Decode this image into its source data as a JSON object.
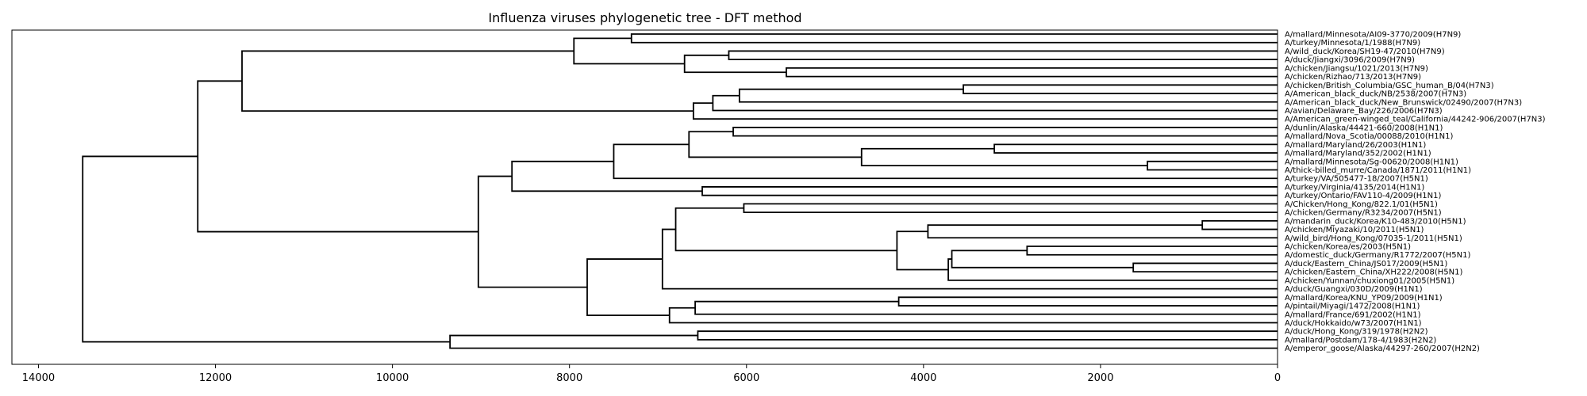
{
  "chart_data": {
    "type": "dendrogram",
    "title": "Influenza viruses phylogenetic tree - DFT method",
    "orientation": "left",
    "xlim": [
      14300,
      0
    ],
    "x_ticks": [
      14000,
      12000,
      10000,
      8000,
      6000,
      4000,
      2000,
      0
    ],
    "x_tick_labels": [
      "14000",
      "12000",
      "10000",
      "8000",
      "6000",
      "4000",
      "2000",
      "0"
    ],
    "leaves": [
      "A/mallard/Minnesota/AI09-3770/2009(H7N9)",
      "A/turkey/Minnesota/1/1988(H7N9)",
      "A/wild_duck/Korea/SH19-47/2010(H7N9)",
      "A/duck/Jiangxi/3096/2009(H7N9)",
      "A/chicken/Jiangsu/1021/2013(H7N9)",
      "A/chicken/Rizhao/713/2013(H7N9)",
      "A/chicken/British_Columbia/GSC_human_B/04(H7N3)",
      "A/American_black_duck/NB/2538/2007(H7N3)",
      "A/American_black_duck/New_Brunswick/02490/2007(H7N3)",
      "A/avian/Delaware_Bay/226/2006(H7N3)",
      "A/American_green-winged_teal/California/44242-906/2007(H7N3)",
      "A/dunlin/Alaska/44421-660/2008(H1N1)",
      "A/mallard/Nova_Scotia/00088/2010(H1N1)",
      "A/mallard/Maryland/26/2003(H1N1)",
      "A/mallard/Maryland/352/2002(H1N1)",
      "A/mallard/Minnesota/Sg-00620/2008(H1N1)",
      "A/thick-billed_murre/Canada/1871/2011(H1N1)",
      "A/turkey/VA/505477-18/2007(H5N1)",
      "A/turkey/Virginia/4135/2014(H1N1)",
      "A/turkey/Ontario/FAV110-4/2009(H1N1)",
      "A/Chicken/Hong_Kong/822.1/01(H5N1)",
      "A/chicken/Germany/R3234/2007(H5N1)",
      "A/mandarin_duck/Korea/K10-483/2010(H5N1)",
      "A/chicken/Miyazaki/10/2011(H5N1)",
      "A/wild_bird/Hong_Kong/07035-1/2011(H5N1)",
      "A/chicken/Korea/es/2003(H5N1)",
      "A/domestic_duck/Germany/R1772/2007(H5N1)",
      "A/duck/Eastern_China/JS017/2009(H5N1)",
      "A/chicken/Eastern_China/XH222/2008(H5N1)",
      "A/chicken/Yunnan/chuxiong01/2005(H5N1)",
      "A/duck/Guangxi/030D/2009(H1N1)",
      "A/mallard/Korea/KNU_YP09/2009(H1N1)",
      "A/pintail/Miyagi/1472/2008(H1N1)",
      "A/mallard/France/691/2002(H1N1)",
      "A/duck/Hokkaido/w73/2007(H1N1)",
      "A/duck/Hong_Kong/319/1978(H2N2)",
      "A/mallard/Postdam/178-4/1983(H2N2)",
      "A/emperor_goose/Alaska/44297-260/2007(H2N2)"
    ],
    "merges": [
      {
        "a": 0,
        "b": 1,
        "height": 7300
      },
      {
        "a": 2,
        "b": 3,
        "height": 6200
      },
      {
        "a": 4,
        "b": 5,
        "height": 5550
      },
      {
        "a": "n1",
        "b": "n2",
        "height": 6700
      },
      {
        "a": "n0",
        "b": "n3",
        "height": 7950
      },
      {
        "a": 6,
        "b": 7,
        "height": 3550
      },
      {
        "a": "n5",
        "b": 8,
        "height": 6080
      },
      {
        "a": "n6",
        "b": 9,
        "height": 6380
      },
      {
        "a": "n7",
        "b": 10,
        "height": 6600
      },
      {
        "a": "n4",
        "b": "n8",
        "height": 11700
      },
      {
        "a": 11,
        "b": 12,
        "height": 6150
      },
      {
        "a": 13,
        "b": 14,
        "height": 3200
      },
      {
        "a": 15,
        "b": 16,
        "height": 1470
      },
      {
        "a": "n11",
        "b": "n12",
        "height": 4700
      },
      {
        "a": "n10",
        "b": "n13",
        "height": 6650
      },
      {
        "a": "n14",
        "b": 17,
        "height": 7500
      },
      {
        "a": 18,
        "b": 19,
        "height": 6500
      },
      {
        "a": "n15",
        "b": "n16",
        "height": 8650
      },
      {
        "a": 20,
        "b": 21,
        "height": 6030
      },
      {
        "a": 22,
        "b": 23,
        "height": 850
      },
      {
        "a": "n19",
        "b": 24,
        "height": 3950
      },
      {
        "a": 25,
        "b": 26,
        "height": 2830
      },
      {
        "a": 27,
        "b": 28,
        "height": 1630
      },
      {
        "a": "n21",
        "b": "n22",
        "height": 3680
      },
      {
        "a": "n23",
        "b": 29,
        "height": 3720
      },
      {
        "a": "n20",
        "b": "n24",
        "height": 4300
      },
      {
        "a": "n18",
        "b": "n25",
        "height": 6800
      },
      {
        "a": "n26",
        "b": 30,
        "height": 6950
      },
      {
        "a": 31,
        "b": 32,
        "height": 4280
      },
      {
        "a": "n28",
        "b": 33,
        "height": 6580
      },
      {
        "a": "n29",
        "b": 34,
        "height": 6870
      },
      {
        "a": "n27",
        "b": "n30",
        "height": 7800
      },
      {
        "a": "n17",
        "b": "n31",
        "height": 9030
      },
      {
        "a": "n9",
        "b": "n32",
        "height": 12200
      },
      {
        "a": 35,
        "b": 36,
        "height": 6550
      },
      {
        "a": "n34",
        "b": 37,
        "height": 9350
      },
      {
        "a": "n33",
        "b": "n35",
        "height": 13500
      }
    ]
  }
}
